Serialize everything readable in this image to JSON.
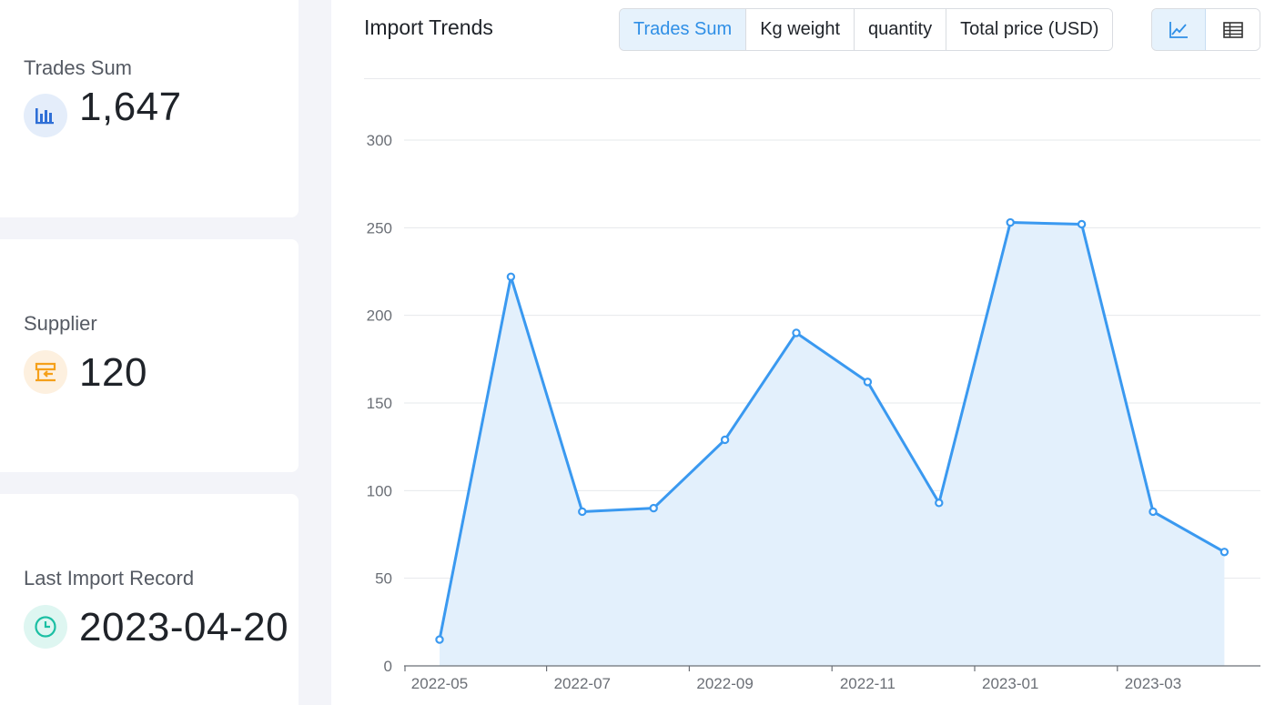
{
  "stats": {
    "trades": {
      "label": "Trades Sum",
      "value": "1,647",
      "icon": "bar-chart-icon",
      "color": "#2f6fd6"
    },
    "supplier": {
      "label": "Supplier",
      "value": "120",
      "icon": "supplier-store-icon",
      "color": "#f5a01a"
    },
    "last_import": {
      "label": "Last Import Record",
      "value": "2023-04-20",
      "icon": "clock-icon",
      "color": "#1bbfa3"
    }
  },
  "panel": {
    "title": "Import Trends",
    "tabs": [
      {
        "label": "Trades Sum",
        "active": true
      },
      {
        "label": "Kg weight",
        "active": false
      },
      {
        "label": "quantity",
        "active": false
      },
      {
        "label": "Total price (USD)",
        "active": false
      }
    ],
    "views": [
      {
        "icon": "line-chart-icon",
        "active": true
      },
      {
        "icon": "table-icon",
        "active": false
      }
    ]
  },
  "chart_data": {
    "type": "area",
    "title": "",
    "xlabel": "",
    "ylabel": "",
    "x": [
      "2022-05",
      "2022-06",
      "2022-07",
      "2022-08",
      "2022-09",
      "2022-10",
      "2022-11",
      "2022-12",
      "2023-01",
      "2023-02",
      "2023-03",
      "2023-04"
    ],
    "x_tick_labels": [
      "2022-05",
      "2022-07",
      "2022-09",
      "2022-11",
      "2023-01",
      "2023-03"
    ],
    "values": [
      15,
      222,
      88,
      90,
      129,
      190,
      162,
      93,
      253,
      252,
      88,
      65
    ],
    "ylim": [
      0,
      300
    ],
    "yticks": [
      0,
      50,
      100,
      150,
      200,
      250,
      300
    ],
    "grid": true,
    "line_color": "#3a99f0",
    "fill_color": "#e3f0fc"
  }
}
